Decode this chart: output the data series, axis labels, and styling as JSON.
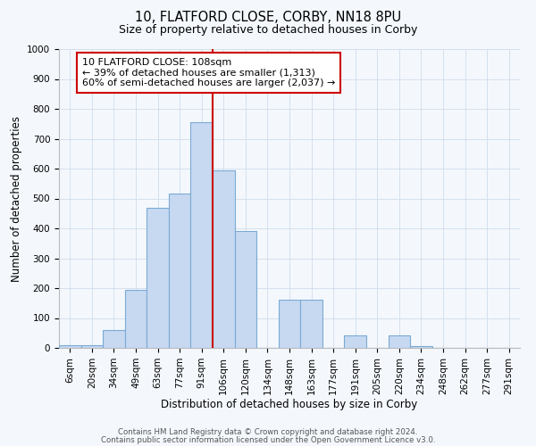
{
  "title": "10, FLATFORD CLOSE, CORBY, NN18 8PU",
  "subtitle": "Size of property relative to detached houses in Corby",
  "xlabel": "Distribution of detached houses by size in Corby",
  "ylabel": "Number of detached properties",
  "bar_labels": [
    "6sqm",
    "20sqm",
    "34sqm",
    "49sqm",
    "63sqm",
    "77sqm",
    "91sqm",
    "106sqm",
    "120sqm",
    "134sqm",
    "148sqm",
    "163sqm",
    "177sqm",
    "191sqm",
    "205sqm",
    "220sqm",
    "234sqm",
    "248sqm",
    "262sqm",
    "277sqm",
    "291sqm"
  ],
  "bar_heights": [
    10,
    10,
    60,
    195,
    470,
    515,
    755,
    595,
    390,
    0,
    160,
    160,
    0,
    43,
    0,
    43,
    5,
    0,
    0,
    0,
    0
  ],
  "bar_color": "#c6d9f1",
  "bar_edge_color": "#7baad4",
  "vline_color": "#cc0000",
  "vline_xindex": 7,
  "annotation_text": "10 FLATFORD CLOSE: 108sqm\n← 39% of detached houses are smaller (1,313)\n60% of semi-detached houses are larger (2,037) →",
  "annotation_box_facecolor": "#ffffff",
  "annotation_box_edgecolor": "#cc0000",
  "ylim": [
    0,
    1000
  ],
  "yticks": [
    0,
    100,
    200,
    300,
    400,
    500,
    600,
    700,
    800,
    900,
    1000
  ],
  "footer1": "Contains HM Land Registry data © Crown copyright and database right 2024.",
  "footer2": "Contains public sector information licensed under the Open Government Licence v3.0.",
  "bg_color": "#f4f8fd",
  "grid_color": "#d0dcea",
  "title_fontsize": 10.5,
  "subtitle_fontsize": 9,
  "axis_label_fontsize": 8.5,
  "tick_fontsize": 7.5,
  "annotation_fontsize": 8,
  "footer_fontsize": 6.2
}
